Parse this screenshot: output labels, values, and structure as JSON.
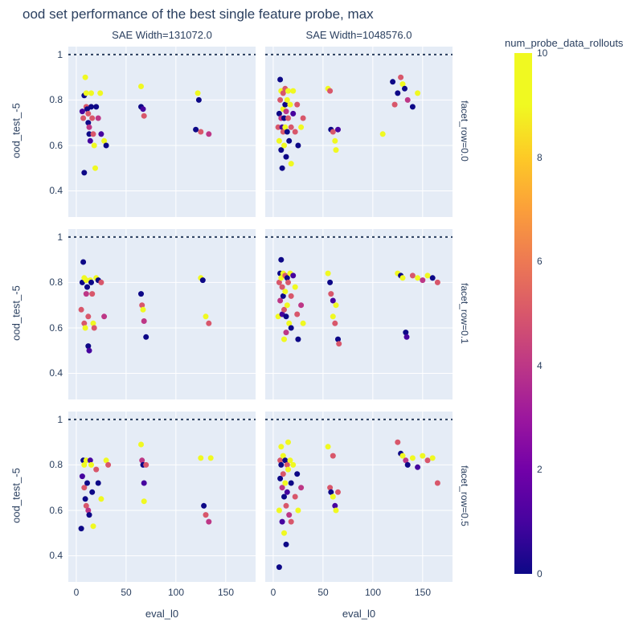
{
  "title": "ood set performance of the best single feature probe, max",
  "chart_data": {
    "type": "scatter",
    "title": "ood set performance of the best single feature probe, max",
    "xlabel": "eval_l0",
    "ylabel": "ood_test_-5",
    "x_ticks": [
      0,
      50,
      100,
      150
    ],
    "y_ticks": [
      0.4,
      0.6,
      0.8,
      1
    ],
    "x_range": [
      -8,
      180
    ],
    "y_range": [
      0.285,
      1.035
    ],
    "reference_line_y": 1,
    "grid": true,
    "plot_bg": "#e5ecf6",
    "grid_color": "#ffffff",
    "text_color": "#2a3f5f",
    "facet_col_labels": [
      "SAE Width=131072.0",
      "SAE Width=1048576.0"
    ],
    "facet_row_labels": [
      "facet_row=0.0",
      "facet_row=0.1",
      "facet_row=0.5"
    ],
    "colorbar": {
      "title": "num_probe_data_rollouts",
      "ticks": [
        0,
        2,
        4,
        6,
        8,
        10
      ],
      "min": 0,
      "max": 10
    },
    "colorscale": [
      [
        0.0,
        "#0d0887"
      ],
      [
        0.1,
        "#46039f"
      ],
      [
        0.2,
        "#7201a8"
      ],
      [
        0.3,
        "#9c179e"
      ],
      [
        0.4,
        "#bd3786"
      ],
      [
        0.5,
        "#d8576b"
      ],
      [
        0.6,
        "#ed7953"
      ],
      [
        0.7,
        "#fb9f3a"
      ],
      [
        0.8,
        "#fdca26"
      ],
      [
        0.9,
        "#f0f921"
      ],
      [
        1.0,
        "#f0f921"
      ]
    ],
    "facets": [
      {
        "row": 0,
        "col": 0,
        "points": [
          [
            6,
            0.75,
            1
          ],
          [
            7,
            0.72,
            5
          ],
          [
            8,
            0.48,
            0
          ],
          [
            8,
            0.82,
            0
          ],
          [
            9,
            0.9,
            10
          ],
          [
            10,
            0.83,
            10
          ],
          [
            10,
            0.77,
            5
          ],
          [
            11,
            0.76,
            0
          ],
          [
            12,
            0.74,
            5
          ],
          [
            12,
            0.7,
            0
          ],
          [
            13,
            0.68,
            4
          ],
          [
            13,
            0.65,
            0
          ],
          [
            14,
            0.62,
            1
          ],
          [
            15,
            0.83,
            9
          ],
          [
            15,
            0.77,
            0
          ],
          [
            16,
            0.72,
            5
          ],
          [
            17,
            0.65,
            5
          ],
          [
            18,
            0.6,
            10
          ],
          [
            19,
            0.5,
            9
          ],
          [
            20,
            0.77,
            0
          ],
          [
            22,
            0.72,
            4
          ],
          [
            24,
            0.83,
            10
          ],
          [
            25,
            0.65,
            1
          ],
          [
            28,
            0.62,
            10
          ],
          [
            30,
            0.6,
            0
          ],
          [
            65,
            0.86,
            9
          ],
          [
            65,
            0.77,
            0
          ],
          [
            67,
            0.76,
            1
          ],
          [
            68,
            0.73,
            5
          ],
          [
            120,
            0.67,
            0
          ],
          [
            122,
            0.83,
            10
          ],
          [
            123,
            0.8,
            0
          ],
          [
            125,
            0.66,
            5
          ],
          [
            133,
            0.65,
            4
          ]
        ]
      },
      {
        "row": 0,
        "col": 1,
        "points": [
          [
            5,
            0.68,
            5
          ],
          [
            6,
            0.74,
            0
          ],
          [
            6,
            0.62,
            10
          ],
          [
            7,
            0.89,
            0
          ],
          [
            7,
            0.8,
            5
          ],
          [
            8,
            0.84,
            10
          ],
          [
            8,
            0.72,
            4
          ],
          [
            8,
            0.58,
            0
          ],
          [
            9,
            0.68,
            1
          ],
          [
            9,
            0.5,
            0
          ],
          [
            10,
            0.83,
            5
          ],
          [
            10,
            0.76,
            9
          ],
          [
            10,
            0.66,
            5
          ],
          [
            11,
            0.72,
            0
          ],
          [
            11,
            0.6,
            10
          ],
          [
            12,
            0.85,
            5
          ],
          [
            12,
            0.78,
            0
          ],
          [
            12,
            0.68,
            10
          ],
          [
            13,
            0.75,
            4
          ],
          [
            13,
            0.55,
            0
          ],
          [
            14,
            0.8,
            10
          ],
          [
            14,
            0.66,
            0
          ],
          [
            15,
            0.84,
            9
          ],
          [
            15,
            0.72,
            5
          ],
          [
            16,
            0.62,
            0
          ],
          [
            17,
            0.78,
            10
          ],
          [
            18,
            0.68,
            5
          ],
          [
            18,
            0.52,
            10
          ],
          [
            20,
            0.84,
            10
          ],
          [
            20,
            0.74,
            1
          ],
          [
            22,
            0.66,
            5
          ],
          [
            24,
            0.78,
            5
          ],
          [
            25,
            0.6,
            0
          ],
          [
            28,
            0.68,
            9
          ],
          [
            30,
            0.72,
            5
          ],
          [
            55,
            0.85,
            10
          ],
          [
            57,
            0.84,
            5
          ],
          [
            58,
            0.67,
            0
          ],
          [
            60,
            0.66,
            5
          ],
          [
            62,
            0.62,
            10
          ],
          [
            63,
            0.58,
            9
          ],
          [
            65,
            0.67,
            1
          ],
          [
            110,
            0.65,
            10
          ],
          [
            120,
            0.88,
            0
          ],
          [
            122,
            0.78,
            5
          ],
          [
            125,
            0.83,
            0
          ],
          [
            128,
            0.9,
            5
          ],
          [
            130,
            0.87,
            10
          ],
          [
            132,
            0.85,
            0
          ],
          [
            135,
            0.8,
            4
          ],
          [
            140,
            0.77,
            0
          ],
          [
            145,
            0.83,
            10
          ]
        ]
      },
      {
        "row": 1,
        "col": 0,
        "points": [
          [
            5,
            0.68,
            5
          ],
          [
            6,
            0.8,
            0
          ],
          [
            7,
            0.89,
            0
          ],
          [
            8,
            0.82,
            10
          ],
          [
            8,
            0.62,
            5
          ],
          [
            9,
            0.6,
            9
          ],
          [
            10,
            0.81,
            10
          ],
          [
            10,
            0.75,
            4
          ],
          [
            11,
            0.78,
            0
          ],
          [
            12,
            0.65,
            5
          ],
          [
            12,
            0.52,
            0
          ],
          [
            13,
            0.5,
            1
          ],
          [
            14,
            0.81,
            10
          ],
          [
            15,
            0.8,
            0
          ],
          [
            16,
            0.75,
            5
          ],
          [
            17,
            0.62,
            10
          ],
          [
            18,
            0.6,
            5
          ],
          [
            20,
            0.82,
            9
          ],
          [
            22,
            0.81,
            0
          ],
          [
            25,
            0.8,
            5
          ],
          [
            28,
            0.65,
            4
          ],
          [
            65,
            0.75,
            0
          ],
          [
            66,
            0.7,
            5
          ],
          [
            67,
            0.68,
            10
          ],
          [
            68,
            0.63,
            4
          ],
          [
            70,
            0.56,
            0
          ],
          [
            125,
            0.82,
            10
          ],
          [
            127,
            0.81,
            0
          ],
          [
            130,
            0.65,
            9
          ],
          [
            133,
            0.62,
            5
          ]
        ]
      },
      {
        "row": 1,
        "col": 1,
        "points": [
          [
            5,
            0.65,
            10
          ],
          [
            6,
            0.8,
            5
          ],
          [
            7,
            0.84,
            0
          ],
          [
            7,
            0.72,
            4
          ],
          [
            8,
            0.9,
            0
          ],
          [
            8,
            0.82,
            10
          ],
          [
            9,
            0.78,
            5
          ],
          [
            9,
            0.66,
            1
          ],
          [
            10,
            0.84,
            10
          ],
          [
            10,
            0.74,
            0
          ],
          [
            11,
            0.68,
            5
          ],
          [
            11,
            0.55,
            9
          ],
          [
            12,
            0.83,
            5
          ],
          [
            12,
            0.76,
            10
          ],
          [
            13,
            0.65,
            0
          ],
          [
            13,
            0.58,
            4
          ],
          [
            14,
            0.82,
            0
          ],
          [
            14,
            0.7,
            10
          ],
          [
            15,
            0.8,
            5
          ],
          [
            16,
            0.62,
            10
          ],
          [
            17,
            0.84,
            9
          ],
          [
            18,
            0.74,
            5
          ],
          [
            18,
            0.6,
            0
          ],
          [
            20,
            0.83,
            1
          ],
          [
            22,
            0.78,
            10
          ],
          [
            24,
            0.66,
            5
          ],
          [
            25,
            0.55,
            0
          ],
          [
            28,
            0.7,
            4
          ],
          [
            30,
            0.62,
            10
          ],
          [
            55,
            0.84,
            10
          ],
          [
            57,
            0.8,
            0
          ],
          [
            58,
            0.75,
            5
          ],
          [
            60,
            0.72,
            1
          ],
          [
            60,
            0.65,
            10
          ],
          [
            62,
            0.62,
            5
          ],
          [
            63,
            0.7,
            9
          ],
          [
            65,
            0.55,
            0
          ],
          [
            66,
            0.53,
            5
          ],
          [
            125,
            0.84,
            10
          ],
          [
            128,
            0.83,
            0
          ],
          [
            130,
            0.82,
            10
          ],
          [
            133,
            0.58,
            0
          ],
          [
            134,
            0.56,
            1
          ],
          [
            140,
            0.83,
            5
          ],
          [
            145,
            0.82,
            10
          ],
          [
            150,
            0.81,
            4
          ],
          [
            155,
            0.83,
            10
          ],
          [
            160,
            0.82,
            0
          ],
          [
            165,
            0.8,
            5
          ]
        ]
      },
      {
        "row": 2,
        "col": 0,
        "points": [
          [
            5,
            0.52,
            0
          ],
          [
            6,
            0.75,
            1
          ],
          [
            7,
            0.82,
            0
          ],
          [
            8,
            0.8,
            10
          ],
          [
            8,
            0.7,
            5
          ],
          [
            9,
            0.65,
            0
          ],
          [
            10,
            0.82,
            9
          ],
          [
            10,
            0.62,
            5
          ],
          [
            11,
            0.72,
            0
          ],
          [
            12,
            0.6,
            4
          ],
          [
            13,
            0.58,
            0
          ],
          [
            14,
            0.82,
            1
          ],
          [
            15,
            0.8,
            10
          ],
          [
            16,
            0.68,
            0
          ],
          [
            17,
            0.53,
            10
          ],
          [
            20,
            0.78,
            5
          ],
          [
            22,
            0.72,
            0
          ],
          [
            25,
            0.65,
            9
          ],
          [
            30,
            0.82,
            10
          ],
          [
            32,
            0.8,
            5
          ],
          [
            65,
            0.89,
            10
          ],
          [
            66,
            0.82,
            4
          ],
          [
            67,
            0.8,
            0
          ],
          [
            68,
            0.72,
            1
          ],
          [
            68,
            0.64,
            10
          ],
          [
            70,
            0.8,
            5
          ],
          [
            125,
            0.83,
            9
          ],
          [
            128,
            0.62,
            0
          ],
          [
            130,
            0.58,
            5
          ],
          [
            133,
            0.55,
            4
          ],
          [
            135,
            0.83,
            10
          ]
        ]
      },
      {
        "row": 2,
        "col": 1,
        "points": [
          [
            6,
            0.35,
            0
          ],
          [
            6,
            0.6,
            10
          ],
          [
            7,
            0.82,
            5
          ],
          [
            7,
            0.74,
            0
          ],
          [
            8,
            0.88,
            9
          ],
          [
            8,
            0.8,
            0
          ],
          [
            9,
            0.7,
            4
          ],
          [
            9,
            0.55,
            1
          ],
          [
            10,
            0.84,
            10
          ],
          [
            10,
            0.76,
            5
          ],
          [
            11,
            0.66,
            0
          ],
          [
            11,
            0.5,
            10
          ],
          [
            12,
            0.82,
            0
          ],
          [
            12,
            0.72,
            9
          ],
          [
            13,
            0.62,
            5
          ],
          [
            13,
            0.45,
            0
          ],
          [
            14,
            0.8,
            5
          ],
          [
            14,
            0.68,
            1
          ],
          [
            15,
            0.9,
            10
          ],
          [
            15,
            0.78,
            10
          ],
          [
            16,
            0.58,
            4
          ],
          [
            17,
            0.82,
            10
          ],
          [
            18,
            0.72,
            0
          ],
          [
            18,
            0.55,
            5
          ],
          [
            20,
            0.8,
            9
          ],
          [
            22,
            0.66,
            5
          ],
          [
            24,
            0.76,
            0
          ],
          [
            25,
            0.6,
            10
          ],
          [
            28,
            0.7,
            4
          ],
          [
            55,
            0.88,
            10
          ],
          [
            57,
            0.7,
            5
          ],
          [
            58,
            0.68,
            0
          ],
          [
            60,
            0.84,
            5
          ],
          [
            60,
            0.66,
            10
          ],
          [
            62,
            0.62,
            1
          ],
          [
            63,
            0.6,
            9
          ],
          [
            65,
            0.68,
            5
          ],
          [
            125,
            0.9,
            5
          ],
          [
            128,
            0.85,
            0
          ],
          [
            130,
            0.84,
            10
          ],
          [
            133,
            0.82,
            4
          ],
          [
            135,
            0.8,
            0
          ],
          [
            140,
            0.83,
            10
          ],
          [
            145,
            0.79,
            1
          ],
          [
            150,
            0.84,
            10
          ],
          [
            155,
            0.82,
            5
          ],
          [
            160,
            0.83,
            9
          ],
          [
            165,
            0.72,
            5
          ]
        ]
      }
    ]
  }
}
